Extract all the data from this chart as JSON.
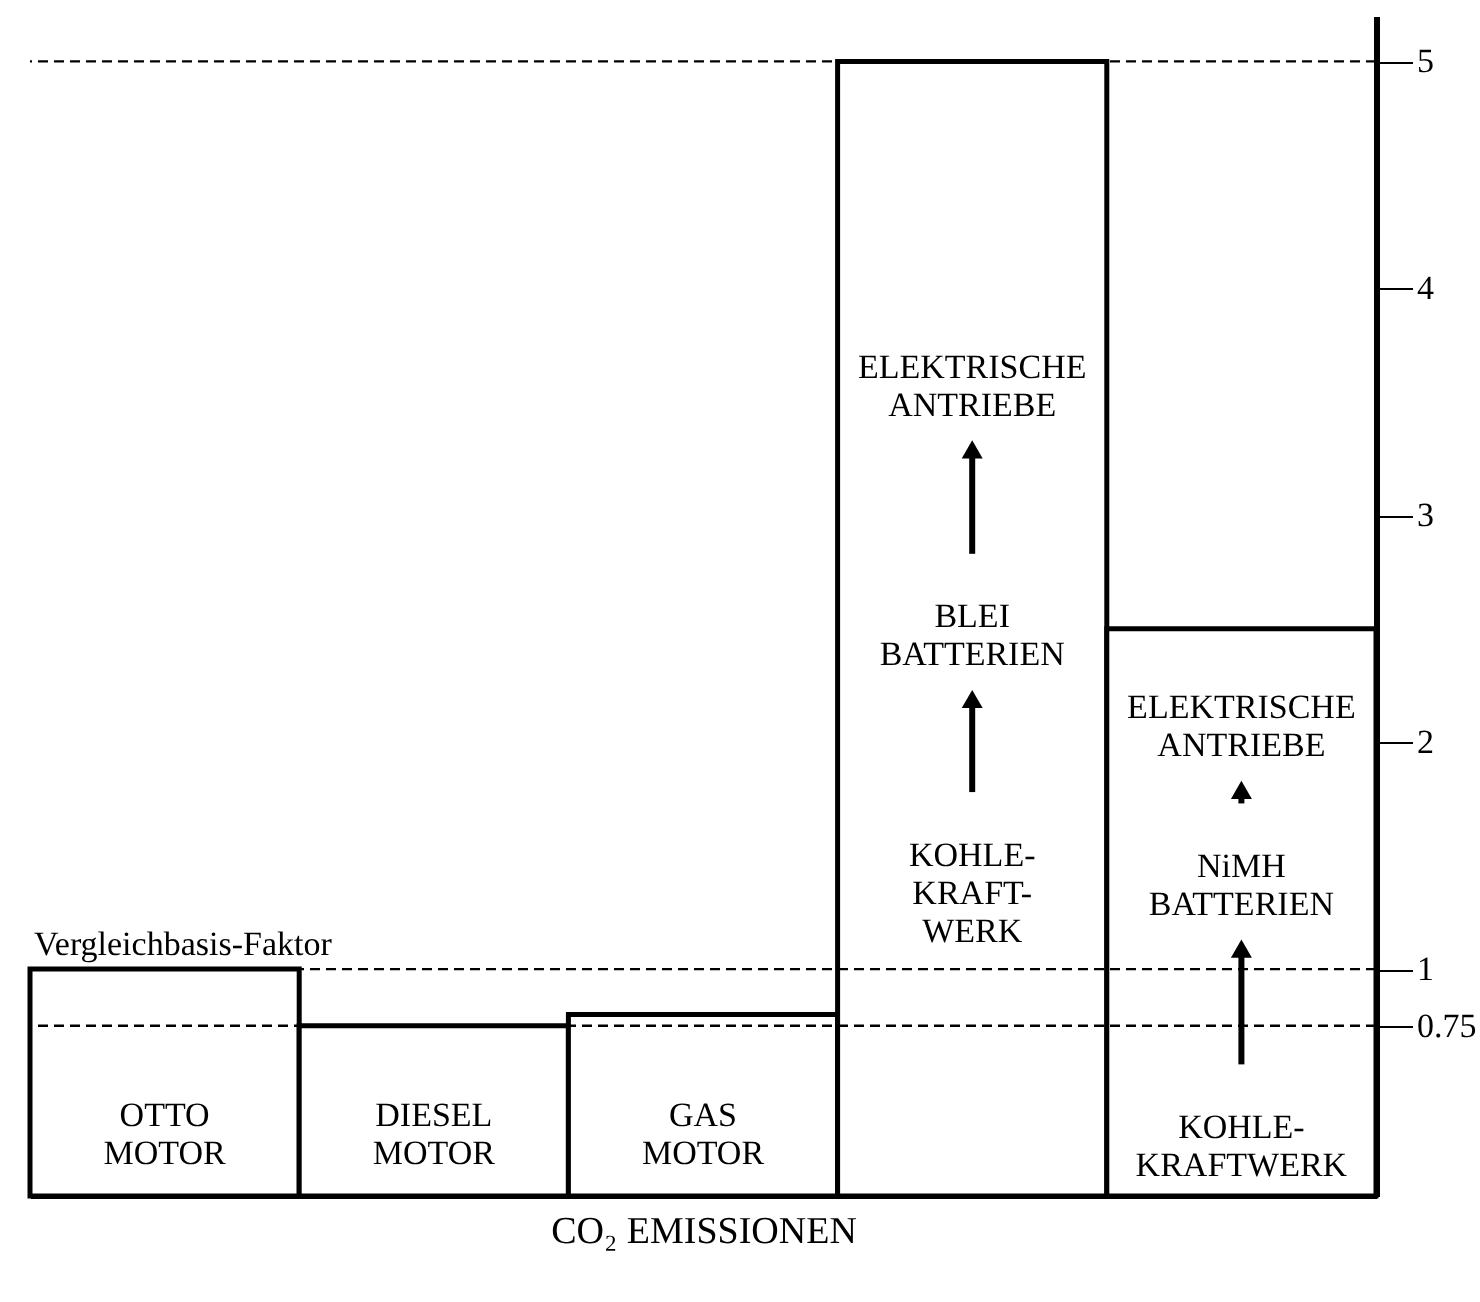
{
  "chart_data": {
    "type": "bar",
    "xlabel": "CO₂ EMISSIONEN",
    "categories": [
      "OTTO\nMOTOR",
      "DIESEL\nMOTOR",
      "GAS\nMOTOR",
      null,
      null
    ],
    "values": [
      1,
      0.75,
      0.8,
      5,
      2.5
    ],
    "color": "#ffffff",
    "ylim": [
      0,
      5.2
    ],
    "yticks": [
      0.75,
      1,
      2,
      3,
      4,
      5
    ],
    "grid": false,
    "ref_lines": [
      {
        "axis": "y",
        "value": 1,
        "label": "Vergleichbasis-Faktor",
        "line_style": "dashed"
      },
      {
        "axis": "y",
        "value": 0.75,
        "label": null,
        "line_style": "dashed"
      },
      {
        "axis": "y",
        "value": 5,
        "label": null,
        "line_style": "dashed"
      }
    ],
    "annotations": [
      "ELEKTRISCHE\nANTRIEBE",
      "BLEI\nBATTERIEN",
      "KOHLE-\nKRAFT-\nWERK",
      "ELEKTRISCHE\nANTRIEBE",
      "NiMH\nBATTERIEN",
      "KOHLE-\nKRAFTWERK"
    ]
  }
}
